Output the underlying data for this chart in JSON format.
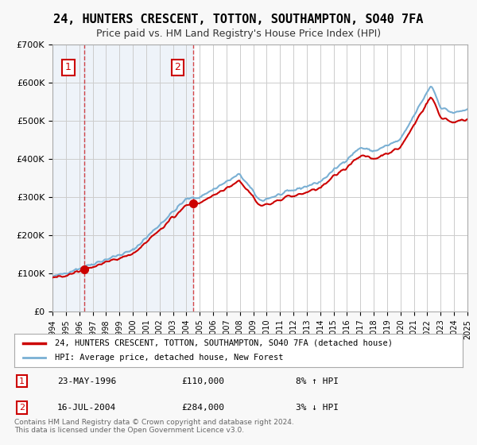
{
  "title": "24, HUNTERS CRESCENT, TOTTON, SOUTHAMPTON, SO40 7FA",
  "subtitle": "Price paid vs. HM Land Registry's House Price Index (HPI)",
  "legend_label_red": "24, HUNTERS CRESCENT, TOTTON, SOUTHAMPTON, SO40 7FA (detached house)",
  "legend_label_blue": "HPI: Average price, detached house, New Forest",
  "annotation1_label": "1",
  "annotation1_date": "23-MAY-1996",
  "annotation1_price": "£110,000",
  "annotation1_hpi": "8% ↑ HPI",
  "annotation2_label": "2",
  "annotation2_date": "16-JUL-2004",
  "annotation2_price": "£284,000",
  "annotation2_hpi": "3% ↓ HPI",
  "sale1_year": 1996.38,
  "sale1_price": 110000,
  "sale2_year": 2004.54,
  "sale2_price": 284000,
  "footer": "Contains HM Land Registry data © Crown copyright and database right 2024.\nThis data is licensed under the Open Government Licence v3.0.",
  "bg_color": "#f0f4fa",
  "plot_bg_color": "#ffffff",
  "hatch_color": "#c8d8ee",
  "red_color": "#cc0000",
  "blue_color": "#7ab0d4",
  "grid_color": "#cccccc",
  "ylim": [
    0,
    700000
  ],
  "xlim_start": 1994,
  "xlim_end": 2025
}
